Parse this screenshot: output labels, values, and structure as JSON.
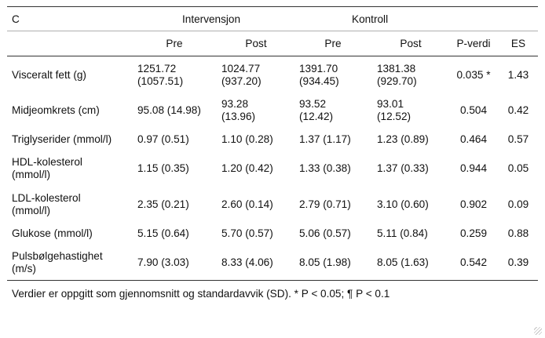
{
  "table": {
    "panel_label": "C",
    "groups": {
      "intervention": "Intervensjon",
      "control": "Kontroll"
    },
    "columns": {
      "pre1": "Pre",
      "post1": "Post",
      "pre2": "Pre",
      "post2": "Post",
      "pvalue": "P-verdi",
      "es": "ES"
    },
    "rows": [
      {
        "label": [
          "Visceralt fett (g)"
        ],
        "pre1": [
          "1251.72",
          "(1057.51)"
        ],
        "post1": [
          "1024.77",
          "(937.20)"
        ],
        "pre2": [
          "1391.70",
          "(934.45)"
        ],
        "post2": [
          "1381.38",
          "(929.70)"
        ],
        "p": "0.035 *",
        "es": "1.43"
      },
      {
        "label": [
          "Midjeomkrets (cm)"
        ],
        "pre1": [
          "95.08 (14.98)"
        ],
        "post1": [
          "93.28",
          "(13.96)"
        ],
        "pre2": [
          "93.52",
          "(12.42)"
        ],
        "post2": [
          "93.01",
          "(12.52)"
        ],
        "p": "0.504",
        "es": "0.42"
      },
      {
        "label": [
          "Triglyserider (mmol/l)"
        ],
        "pre1": [
          "0.97 (0.51)"
        ],
        "post1": [
          "1.10 (0.28)"
        ],
        "pre2": [
          "1.37 (1.17)"
        ],
        "post2": [
          "1.23 (0.89)"
        ],
        "p": "0.464",
        "es": "0.57"
      },
      {
        "label": [
          "HDL-kolesterol",
          "(mmol/l)"
        ],
        "pre1": [
          "1.15 (0.35)"
        ],
        "post1": [
          "1.20 (0.42)"
        ],
        "pre2": [
          "1.33 (0.38)"
        ],
        "post2": [
          "1.37 (0.33)"
        ],
        "p": "0.944",
        "es": "0.05"
      },
      {
        "label": [
          "LDL-kolesterol",
          "(mmol/l)"
        ],
        "pre1": [
          "2.35 (0.21)"
        ],
        "post1": [
          "2.60 (0.14)"
        ],
        "pre2": [
          "2.79 (0.71)"
        ],
        "post2": [
          "3.10 (0.60)"
        ],
        "p": "0.902",
        "es": "0.09"
      },
      {
        "label": [
          "Glukose (mmol/l)"
        ],
        "pre1": [
          "5.15 (0.64)"
        ],
        "post1": [
          "5.70 (0.57)"
        ],
        "pre2": [
          "5.06 (0.57)"
        ],
        "post2": [
          "5.11 (0.84)"
        ],
        "p": "0.259",
        "es": "0.88"
      },
      {
        "label": [
          "Pulsbølgehastighet",
          "(m/s)"
        ],
        "pre1": [
          "7.90 (3.03)"
        ],
        "post1": [
          "8.33 (4.06)"
        ],
        "pre2": [
          "8.05 (1.98)"
        ],
        "post2": [
          "8.05 (1.63)"
        ],
        "p": "0.542",
        "es": "0.39"
      }
    ],
    "footnote": "Verdier er oppgitt som gjennomsnitt og standardavvik (SD). * P < 0.05; ¶ P < 0.1"
  }
}
